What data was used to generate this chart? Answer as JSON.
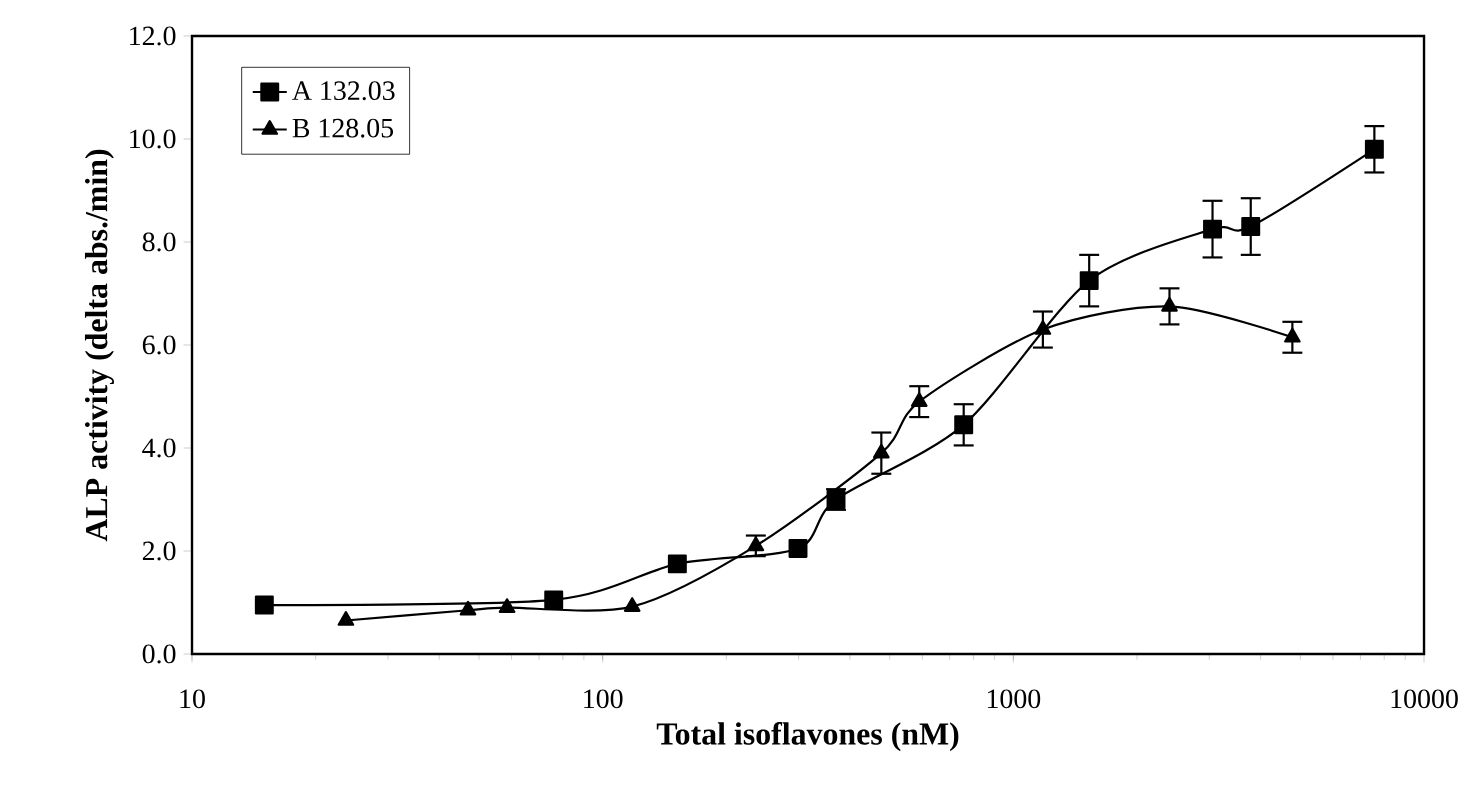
{
  "chart_data": {
    "type": "line",
    "xlabel": "Total isoflavones (nM)",
    "ylabel": "ALP activity (delta abs./min)",
    "log": "x",
    "xlim": [
      10,
      10000
    ],
    "xticks": [
      10,
      100,
      1000,
      10000
    ],
    "ylim": [
      0,
      12
    ],
    "yticks": [
      {
        "value": 0,
        "label": "0.0"
      },
      {
        "value": 2,
        "label": "2.0"
      },
      {
        "value": 4,
        "label": "4.0"
      },
      {
        "value": 6,
        "label": "6.0"
      },
      {
        "value": 8,
        "label": "8.0"
      },
      {
        "value": 10,
        "label": "10.0"
      },
      {
        "value": 12,
        "label": "12.0"
      }
    ],
    "grid": false,
    "legend": "top left",
    "series": [
      {
        "name": "A 132.03",
        "color": "#000000",
        "marker": "square",
        "x": [
          15,
          76,
          152,
          299,
          370,
          757,
          1530,
          3055,
          3785,
          7570
        ],
        "values": [
          0.95,
          1.05,
          1.75,
          2.05,
          3.0,
          4.45,
          7.25,
          8.25,
          8.3,
          9.8
        ],
        "errors": [
          null,
          null,
          null,
          null,
          0.2,
          0.4,
          0.5,
          0.55,
          0.55,
          0.45
        ]
      },
      {
        "name": "B 128.05",
        "color": "#000000",
        "marker": "triangle",
        "x": [
          23.7,
          47,
          58.5,
          118,
          236,
          477,
          590,
          1180,
          2400,
          4780
        ],
        "values": [
          0.65,
          0.85,
          0.9,
          0.92,
          2.1,
          3.9,
          4.9,
          6.3,
          6.75,
          6.15
        ],
        "errors": [
          null,
          null,
          null,
          null,
          0.2,
          0.4,
          0.3,
          0.35,
          0.35,
          0.3
        ]
      }
    ]
  }
}
